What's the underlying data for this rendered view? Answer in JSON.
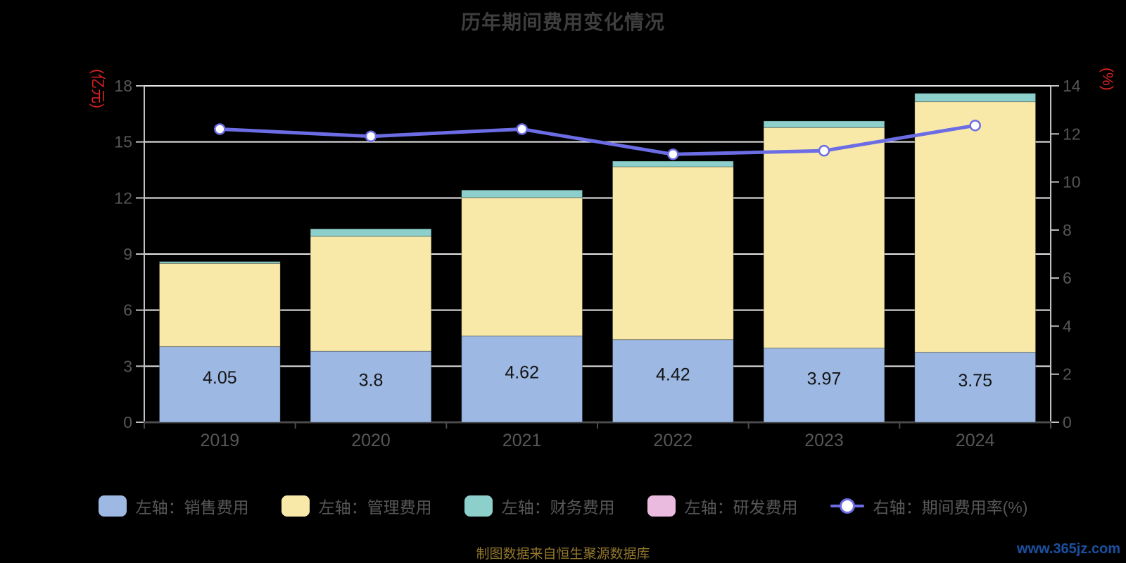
{
  "header": {
    "title": "历年期间费用变化情况"
  },
  "axes": {
    "left_unit": "(亿元)",
    "right_unit": "(%)",
    "left_ticks": [
      0,
      3,
      6,
      9,
      12,
      15,
      18
    ],
    "right_ticks": [
      0,
      2,
      4,
      6,
      8,
      10,
      12,
      14
    ],
    "left_range": [
      0,
      18
    ],
    "right_range": [
      0,
      14
    ]
  },
  "chart_data": {
    "type": "bar",
    "subtype": "stacked-bars-with-line",
    "title": "历年期间费用变化情况",
    "categories": [
      "2019",
      "2020",
      "2021",
      "2022",
      "2023",
      "2024"
    ],
    "grid": "horizontal-white-lines",
    "legend_position": "bottom",
    "ylim_left": [
      0,
      18
    ],
    "ylim_right": [
      0,
      14
    ],
    "series": [
      {
        "name": "左轴：销售费用",
        "type": "bar",
        "axis": "left",
        "color": "#9cb8e3",
        "values": [
          4.05,
          3.8,
          4.62,
          4.42,
          3.97,
          3.75
        ],
        "labels": [
          "4.05",
          "3.8",
          "4.62",
          "4.42",
          "3.97",
          "3.75"
        ]
      },
      {
        "name": "左轴：管理费用",
        "type": "bar",
        "axis": "left",
        "color": "#f9e9a9",
        "values": [
          4.45,
          6.15,
          7.4,
          9.25,
          11.8,
          13.4
        ]
      },
      {
        "name": "左轴：财务费用",
        "type": "bar",
        "axis": "left",
        "color": "#8ccfcb",
        "values": [
          0.1,
          0.4,
          0.4,
          0.3,
          0.35,
          0.45
        ]
      },
      {
        "name": "左轴：研发费用",
        "type": "bar",
        "axis": "left",
        "color": "#ebbadf",
        "values": [
          0,
          0,
          0,
          0,
          0,
          0
        ]
      },
      {
        "name": "右轴：期间费用率(%)",
        "type": "line",
        "axis": "right",
        "color": "#6c6ce4",
        "values": [
          12.2,
          11.9,
          12.2,
          11.15,
          11.3,
          12.35
        ]
      }
    ]
  },
  "footer": {
    "source": "制图数据来自恒生聚源数据库",
    "watermark": "www.365jz.com"
  },
  "colors": {
    "background": "#000000",
    "title_text": "#3e3e3e",
    "axis_tick_text": "#575757",
    "axis_unit_text": "#e02222",
    "gridline": "#e8e8e8",
    "side_axis_line": "#c2c2c2",
    "bottom_axis_line": "#4a4a4a",
    "bar_value_label": "#141414",
    "source_text": "#95792d",
    "watermark_text": "#1d4f9c"
  }
}
